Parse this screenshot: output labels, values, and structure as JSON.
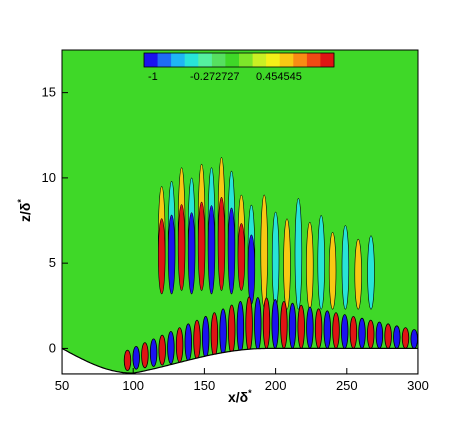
{
  "chart_data": {
    "type": "heatmap",
    "title": "",
    "xlabel": "x/δ*",
    "ylabel": "z/δ*",
    "xlim": [
      50,
      300
    ],
    "ylim": [
      -1.5,
      17.5
    ],
    "xticks": [
      "50",
      "100",
      "150",
      "200",
      "250",
      "300"
    ],
    "yticks": [
      "0",
      "5",
      "10",
      "15"
    ],
    "colorbar": {
      "placement": "top",
      "range": [
        -1,
        1
      ],
      "labels": [
        "-1",
        "-0.272727",
        "0.454545"
      ],
      "colors": [
        "#1b13f0",
        "#1f6cf6",
        "#1fb6f4",
        "#28e4d8",
        "#55f0a0",
        "#56e060",
        "#3fd828",
        "#7de62a",
        "#c9f024",
        "#f4f018",
        "#f8c814",
        "#f88c14",
        "#f04a14",
        "#e01414"
      ]
    },
    "wall_surface": "bump centered near x = 100"
  }
}
